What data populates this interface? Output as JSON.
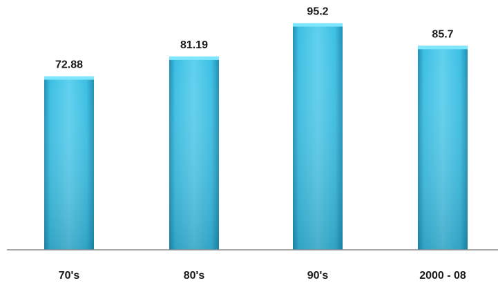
{
  "chart_data": {
    "type": "bar",
    "categories": [
      "70's",
      "80's",
      "90's",
      "2000 - 08"
    ],
    "values": [
      72.88,
      81.19,
      95.2,
      85.7
    ],
    "value_labels": [
      "72.88",
      "81.19",
      "95.2",
      "85.7"
    ],
    "title": "",
    "xlabel": "",
    "ylabel": "",
    "ylim": [
      0,
      100
    ],
    "grid": false,
    "legend": "none",
    "colors": {
      "bar_light": "#5fd0ee",
      "bar_mid": "#3cbfe3",
      "bar_dark": "#1f8fb4",
      "bar_top": "#7fe6fb",
      "axis": "#8a8a8a"
    }
  }
}
